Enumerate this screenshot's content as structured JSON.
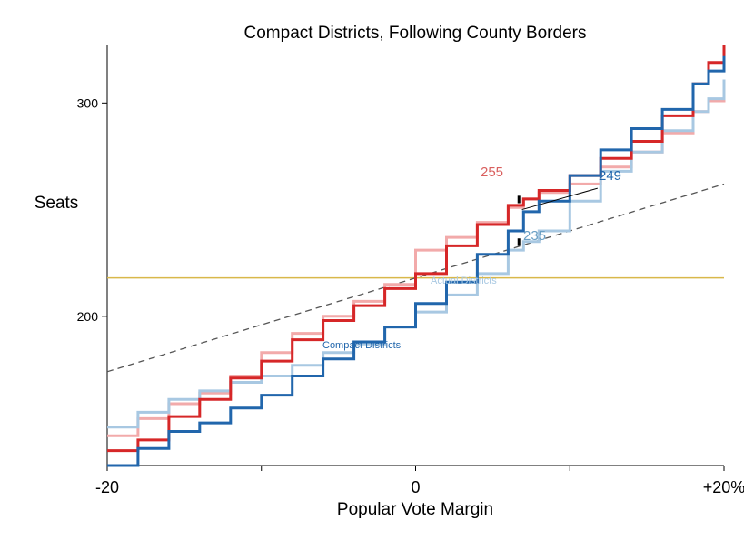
{
  "chart_data": {
    "type": "line",
    "title": "Compact Districts, Following County Borders",
    "xlabel": "Popular Vote Margin",
    "ylabel": "Seats",
    "xlim": [
      -20,
      20
    ],
    "ylim": [
      130,
      327
    ],
    "x_ticks": [
      -20,
      -10,
      0,
      10,
      20
    ],
    "x_tick_labels": [
      "-20",
      "",
      "0",
      "",
      "+20%"
    ],
    "y_ticks": [
      200,
      300
    ],
    "y_tick_labels": [
      "200",
      "300"
    ],
    "reference_line": {
      "y": 218,
      "color": "#d9b84a"
    },
    "proportional_line": {
      "points": [
        [
          -20,
          174
        ],
        [
          20,
          262
        ]
      ],
      "style": "dashed",
      "color": "#555555"
    },
    "series": [
      {
        "color": "#d62728",
        "points": [
          [
            -20,
            137
          ],
          [
            -18,
            142
          ],
          [
            -16,
            153
          ],
          [
            -14,
            161
          ],
          [
            -12,
            171
          ],
          [
            -10,
            179
          ],
          [
            -8,
            189
          ],
          [
            -6,
            198
          ],
          [
            -4,
            205
          ],
          [
            -2,
            213
          ],
          [
            0,
            220
          ],
          [
            2,
            233
          ],
          [
            4,
            243
          ],
          [
            6,
            252
          ],
          [
            7,
            255
          ],
          [
            8,
            259
          ],
          [
            10,
            266
          ],
          [
            12,
            274
          ],
          [
            14,
            282
          ],
          [
            16,
            294
          ],
          [
            18,
            309
          ],
          [
            19,
            319
          ],
          [
            20,
            327
          ]
        ]
      },
      {
        "color": "#f2aaaa",
        "points": [
          [
            -20,
            144
          ],
          [
            -18,
            152
          ],
          [
            -16,
            159
          ],
          [
            -14,
            164
          ],
          [
            -12,
            172
          ],
          [
            -10,
            183
          ],
          [
            -8,
            192
          ],
          [
            -6,
            200
          ],
          [
            -4,
            207
          ],
          [
            -2,
            215
          ],
          [
            0,
            231
          ],
          [
            2,
            237
          ],
          [
            4,
            244
          ],
          [
            6,
            251
          ],
          [
            7,
            255
          ],
          [
            8,
            258
          ],
          [
            10,
            262
          ],
          [
            12,
            270
          ],
          [
            14,
            277
          ],
          [
            16,
            286
          ],
          [
            18,
            296
          ],
          [
            19,
            301
          ],
          [
            20,
            310
          ]
        ]
      },
      {
        "color": "#2166ac",
        "points": [
          [
            -20,
            130
          ],
          [
            -18,
            138
          ],
          [
            -16,
            146
          ],
          [
            -14,
            150
          ],
          [
            -12,
            157
          ],
          [
            -10,
            163
          ],
          [
            -8,
            172
          ],
          [
            -6,
            180
          ],
          [
            -4,
            188
          ],
          [
            -2,
            195
          ],
          [
            0,
            206
          ],
          [
            2,
            216
          ],
          [
            4,
            229
          ],
          [
            6,
            240
          ],
          [
            7,
            249
          ],
          [
            8,
            254
          ],
          [
            10,
            266
          ],
          [
            12,
            278
          ],
          [
            14,
            288
          ],
          [
            16,
            297
          ],
          [
            18,
            309
          ],
          [
            19,
            315
          ],
          [
            20,
            322
          ]
        ]
      },
      {
        "color": "#a8c8e2",
        "points": [
          [
            -20,
            148
          ],
          [
            -18,
            155
          ],
          [
            -16,
            161
          ],
          [
            -14,
            165
          ],
          [
            -12,
            169
          ],
          [
            -10,
            172
          ],
          [
            -8,
            177
          ],
          [
            -6,
            183
          ],
          [
            -4,
            187
          ],
          [
            -2,
            195
          ],
          [
            0,
            202
          ],
          [
            2,
            210
          ],
          [
            4,
            220
          ],
          [
            6,
            231
          ],
          [
            7,
            235
          ],
          [
            8,
            240
          ],
          [
            10,
            254
          ],
          [
            12,
            268
          ],
          [
            14,
            277
          ],
          [
            16,
            287
          ],
          [
            18,
            296
          ],
          [
            19,
            302
          ],
          [
            20,
            311
          ]
        ]
      }
    ],
    "annotations": [
      {
        "text": "255",
        "color": "#d9605f"
      },
      {
        "text": "249",
        "color": "#2166ac"
      },
      {
        "text": "235",
        "color": "#6a9fc4"
      },
      {
        "text": "Actual Districts",
        "color": "#a8c8e2"
      },
      {
        "text": "Compact Districts",
        "color": "#2166ac"
      }
    ]
  }
}
